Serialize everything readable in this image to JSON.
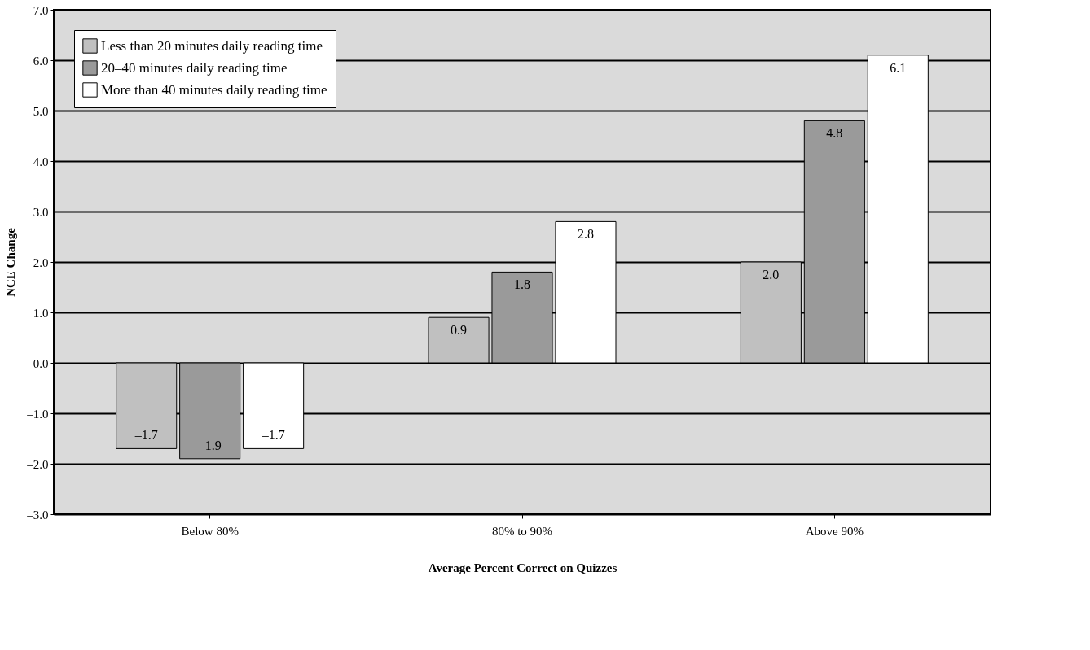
{
  "chart_data": {
    "type": "bar",
    "xlabel": "Average Percent Correct on Quizzes",
    "ylabel": "NCE Change",
    "categories": [
      "Below 80%",
      "80% to 90%",
      "Above 90%"
    ],
    "series": [
      {
        "name": "Less than 20 minutes daily reading time",
        "color": "#c0c0c0",
        "values": [
          -1.7,
          0.9,
          2.0
        ],
        "value_labels": [
          "–1.7",
          "0.9",
          "2.0"
        ]
      },
      {
        "name": "20–40 minutes daily reading time",
        "color": "#9a9a9a",
        "values": [
          -1.9,
          1.8,
          4.8
        ],
        "value_labels": [
          "–1.9",
          "1.8",
          "4.8"
        ]
      },
      {
        "name": "More than 40 minutes daily reading time",
        "color": "#ffffff",
        "values": [
          -1.7,
          2.8,
          6.1
        ],
        "value_labels": [
          "–1.7",
          "2.8",
          "6.1"
        ]
      }
    ],
    "ylim": [
      -3,
      7
    ],
    "yticks": [
      {
        "value": -3,
        "label": "–3.0"
      },
      {
        "value": -2,
        "label": "–2.0"
      },
      {
        "value": -1,
        "label": "–1.0"
      },
      {
        "value": 0,
        "label": "0.0"
      },
      {
        "value": 1,
        "label": "1.0"
      },
      {
        "value": 2,
        "label": "2.0"
      },
      {
        "value": 3,
        "label": "3.0"
      },
      {
        "value": 4,
        "label": "4.0"
      },
      {
        "value": 5,
        "label": "5.0"
      },
      {
        "value": 6,
        "label": "6.0"
      },
      {
        "value": 7,
        "label": "7.0"
      }
    ],
    "grid": "y",
    "legend": "top left"
  }
}
